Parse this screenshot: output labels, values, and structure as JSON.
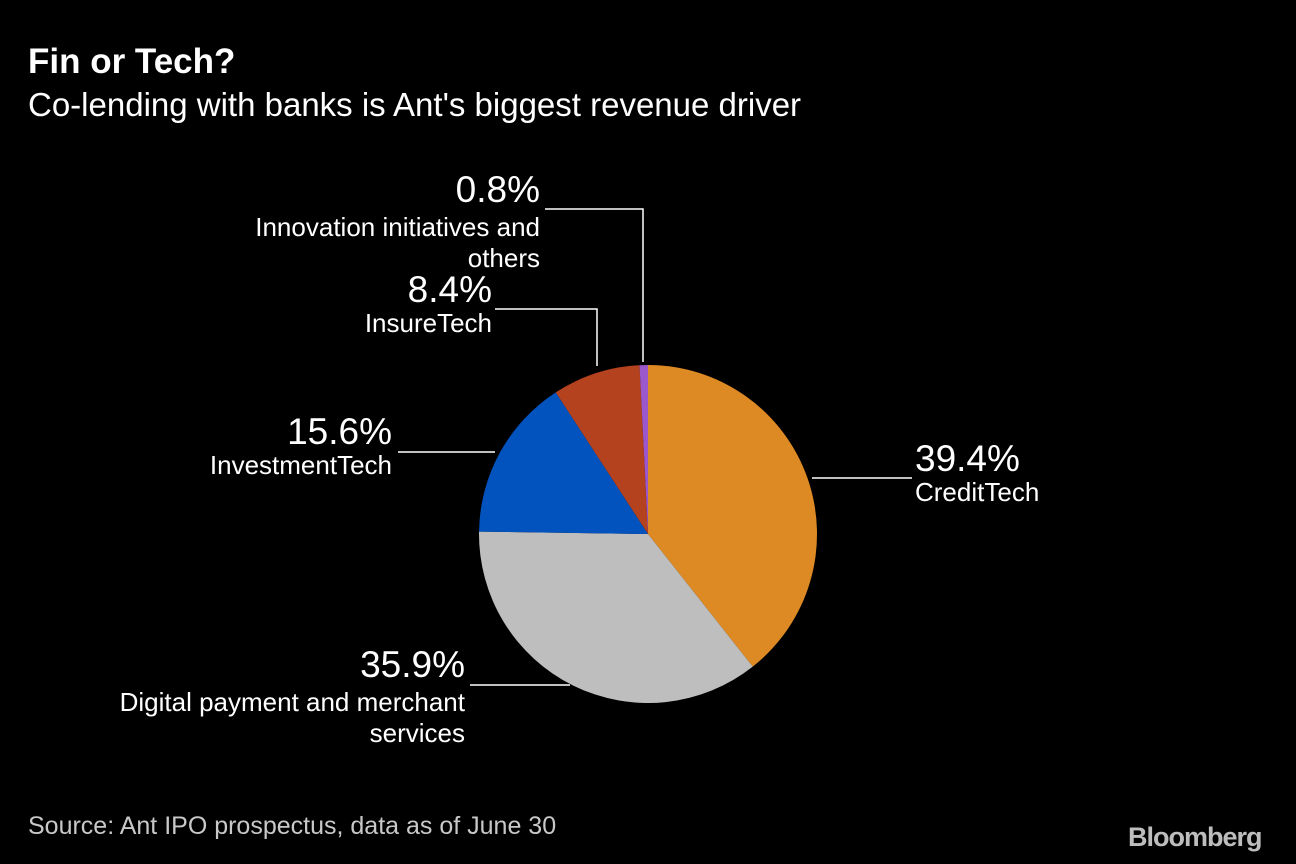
{
  "title": "Fin or Tech?",
  "subtitle": "Co-lending with banks is Ant's biggest revenue driver",
  "source": "Source: Ant IPO prospectus, data as of June 30",
  "logo": "Bloomberg",
  "chart_data": {
    "type": "pie",
    "start": "12 o'clock, clockwise",
    "slices": [
      {
        "label": "CreditTech",
        "value": 39.4,
        "display": "39.4%",
        "color": "#DE8A24"
      },
      {
        "label": "Digital payment and merchant services",
        "value": 35.9,
        "display": "35.9%",
        "color": "#BEBEBE"
      },
      {
        "label": "InvestmentTech",
        "value": 15.6,
        "display": "15.6%",
        "color": "#0353BE"
      },
      {
        "label": "InsureTech",
        "value": 8.4,
        "display": "8.4%",
        "color": "#B5421E"
      },
      {
        "label": "Innovation initiatives and others",
        "value": 0.8,
        "display": "0.8%",
        "color": "#9B58CC"
      }
    ]
  }
}
